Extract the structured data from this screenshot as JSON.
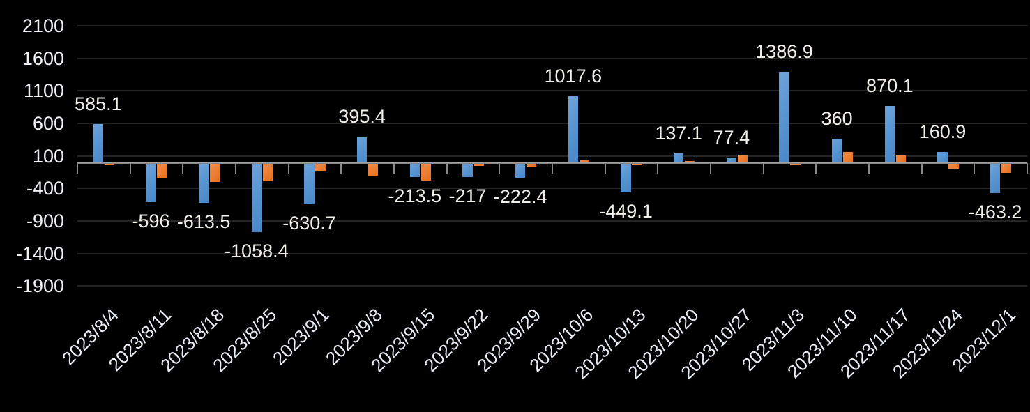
{
  "chart_data": {
    "type": "bar",
    "title": "",
    "categories": [
      "2023/8/4",
      "2023/8/11",
      "2023/8/18",
      "2023/8/25",
      "2023/9/1",
      "2023/9/8",
      "2023/9/15",
      "2023/9/22",
      "2023/9/29",
      "2023/10/6",
      "2023/10/13",
      "2023/10/20",
      "2023/10/27",
      "2023/11/3",
      "2023/11/10",
      "2023/11/17",
      "2023/11/24",
      "2023/12/1"
    ],
    "series": [
      {
        "name": "primary-blue-series",
        "color": "#5B9BD5",
        "values": [
          585.1,
          -596,
          -613.5,
          -1058.4,
          -630.7,
          395.4,
          -213.5,
          -217,
          -222.4,
          1017.6,
          -449.1,
          137.1,
          77.4,
          1386.9,
          360,
          870.1,
          160.9,
          -463.2
        ],
        "data_labels": [
          "585.1",
          "-596",
          "-613.5",
          "-1058.4",
          "-630.7",
          "395.4",
          "-213.5",
          "-217",
          "-222.4",
          "1017.6",
          "-449.1",
          "137.1",
          "77.4",
          "1386.9",
          "360",
          "870.1",
          "160.9",
          "-463.2"
        ],
        "labels_shown": true
      },
      {
        "name": "secondary-orange-series",
        "color": "#ED7D31",
        "values": [
          -20,
          -230,
          -285,
          -280,
          -130,
          -190,
          -265,
          -45,
          -55,
          40,
          -35,
          20,
          120,
          -35,
          165,
          110,
          -100,
          -145
        ],
        "data_labels": [],
        "labels_shown": false
      }
    ],
    "y_axis": {
      "tick_values": [
        2100,
        1600,
        1100,
        600,
        100,
        -400,
        -900,
        -1400,
        -1900
      ],
      "tick_labels": [
        "2100",
        "1600",
        "1100",
        "600",
        "100",
        "-400",
        "-900",
        "-1400",
        "-1900"
      ],
      "min": -1900,
      "max": 2100,
      "step": 500
    },
    "x_axis": {
      "tick_marks_between_categories": true
    },
    "grid": true,
    "legend": false,
    "colors": {
      "background": "#000000",
      "gridline": "#242424",
      "axis_line": "#8f8f8f",
      "y_label_text": "#eef0f4",
      "x_label_text": "#e9eef6",
      "data_label_text": "#f2efe9",
      "blue_bar": "#5B9BD5",
      "orange_bar": "#ED7D31"
    }
  }
}
